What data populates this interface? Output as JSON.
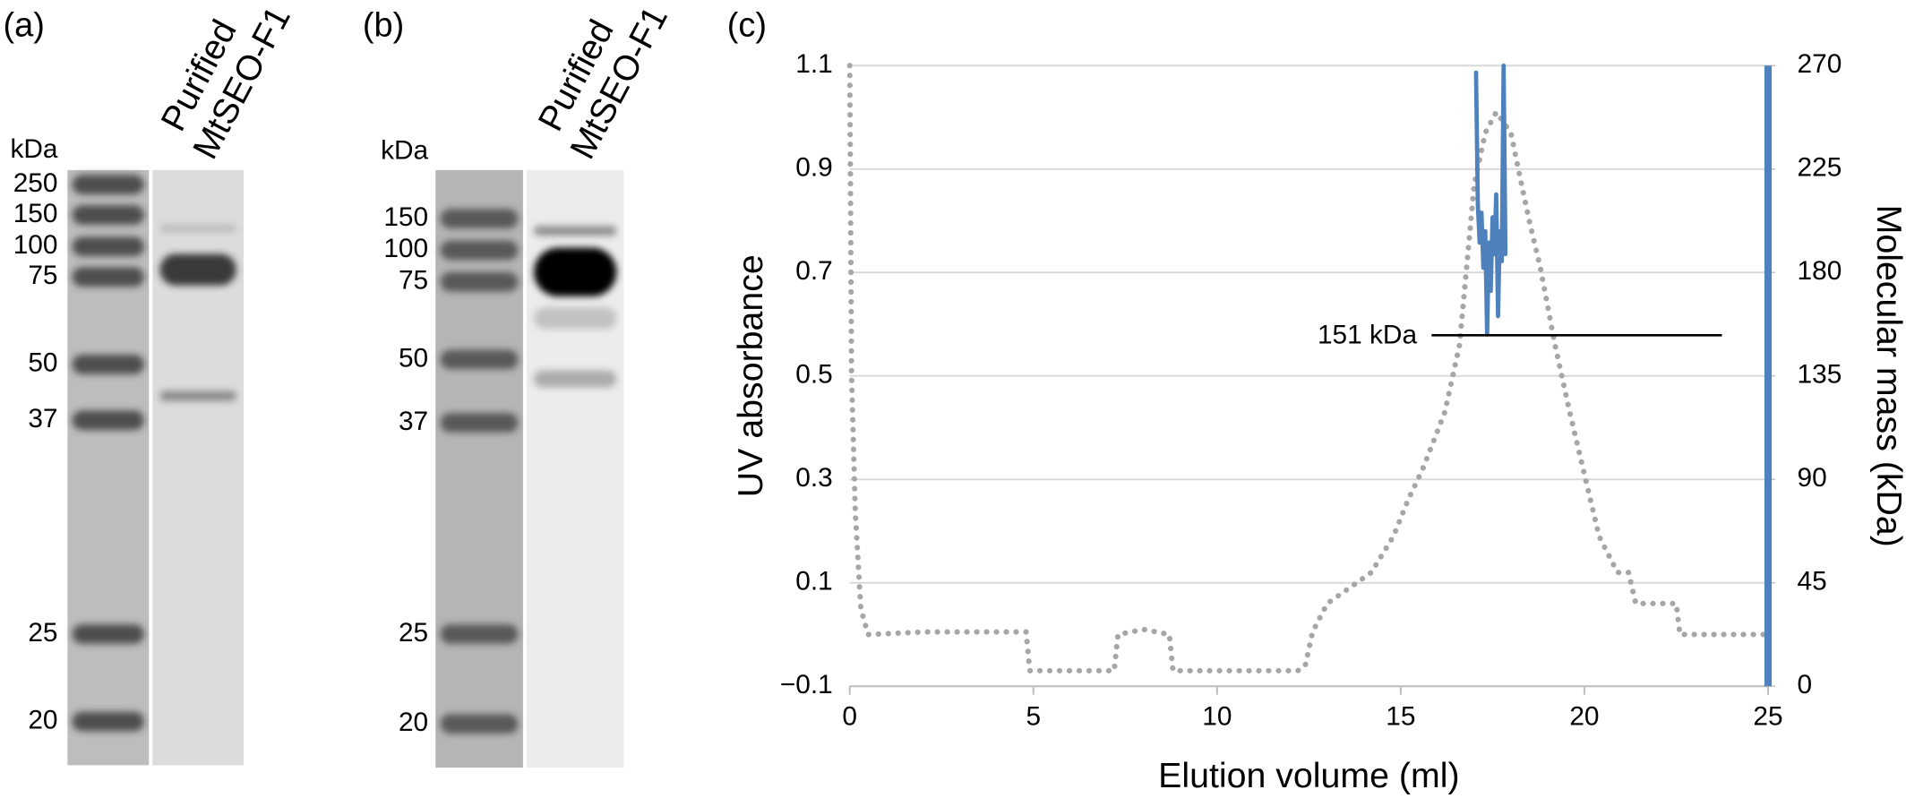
{
  "gels": [
    {
      "panel_label": "(a)",
      "lane_title": [
        "Purified",
        "MtSEO-F1"
      ],
      "unit": "kDa",
      "markers": [
        "250",
        "150",
        "100",
        "75",
        "50",
        "37",
        "25",
        "20"
      ]
    },
    {
      "panel_label": "(b)",
      "lane_title": [
        "Purified",
        "MtSEO-F1"
      ],
      "unit": "kDa",
      "markers": [
        "150",
        "100",
        "75",
        "50",
        "37",
        "25",
        "20"
      ]
    }
  ],
  "chart_data": {
    "type": "line",
    "panel_label": "(c)",
    "xlabel": "Elution volume (ml)",
    "ylabel": "UV absorbance",
    "y2label": "Molecular mass (kDa)",
    "annotation": "151 kDa",
    "xlim": [
      0,
      25
    ],
    "xticks": [
      0,
      5,
      10,
      15,
      20,
      25
    ],
    "ylim": [
      -0.1,
      1.1
    ],
    "yticks": [
      {
        "value": -0.1,
        "label": "−0.1"
      },
      0.1,
      0.3,
      0.5,
      0.7,
      0.9,
      1.1
    ],
    "y2lim": [
      0,
      270
    ],
    "y2ticks": [
      0,
      45,
      90,
      135,
      180,
      225,
      270
    ],
    "grid": true,
    "series": [
      {
        "color": "#a6a6a6",
        "style": "dotted",
        "x": [
          0,
          0.05,
          0.15,
          0.3,
          0.5,
          2,
          4.8,
          4.9,
          7.2,
          7.3,
          8,
          8.7,
          8.8,
          12.2,
          12.4,
          12.6,
          13,
          14.2,
          14.8,
          15.2,
          15.6,
          16.2,
          16.6,
          17,
          17.3,
          17.6,
          18,
          18.2,
          18.5,
          18.8,
          19.2,
          19.6,
          20,
          20.4,
          20.9,
          21.2,
          21.4,
          22.5,
          22.6,
          25
        ],
        "values": [
          1.1,
          0.5,
          0.24,
          0.05,
          0,
          0.005,
          0.005,
          -0.07,
          -0.07,
          0,
          0.01,
          0,
          -0.07,
          -0.07,
          -0.06,
          0.005,
          0.06,
          0.12,
          0.19,
          0.26,
          0.32,
          0.43,
          0.56,
          0.87,
          0.97,
          1.01,
          0.97,
          0.9,
          0.8,
          0.71,
          0.56,
          0.43,
          0.31,
          0.19,
          0.12,
          0.12,
          0.06,
          0.06,
          0,
          0
        ]
      },
      {
        "color": "#4f81bd",
        "style": "solid",
        "axis": "y2",
        "x": [
          17.05,
          17.1,
          17.15,
          17.2,
          17.25,
          17.3,
          17.35,
          17.4,
          17.45,
          17.5,
          17.55,
          17.6,
          17.65,
          17.7,
          17.75,
          17.8,
          17.85
        ],
        "values": [
          267,
          209,
          193,
          206,
          182,
          198,
          153,
          193,
          172,
          204,
          188,
          214,
          161,
          198,
          185,
          270,
          188
        ]
      }
    ]
  }
}
